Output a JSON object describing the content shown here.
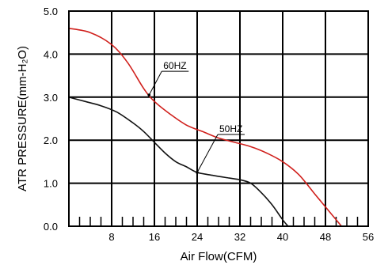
{
  "chart_data": {
    "type": "line",
    "xlabel": "Air Flow(CFM)",
    "ylabel": "ATR PRESSURE(mm-H₂O)",
    "xlim": [
      0,
      56
    ],
    "ylim": [
      0,
      5.0
    ],
    "x_ticks": [
      "8",
      "16",
      "24",
      "32",
      "40",
      "48",
      "56"
    ],
    "y_ticks": [
      "0.0",
      "1.0",
      "2.0",
      "3.0",
      "4.0",
      "5.0"
    ],
    "grid": true,
    "series": [
      {
        "name": "60HZ",
        "color": "#d0201c",
        "x": [
          0,
          4,
          8,
          11,
          14,
          16,
          19,
          22,
          25,
          28,
          31,
          34,
          37,
          40,
          43,
          46,
          49,
          51
        ],
        "y": [
          4.6,
          4.5,
          4.22,
          3.8,
          3.2,
          2.9,
          2.6,
          2.35,
          2.2,
          2.05,
          1.95,
          1.85,
          1.7,
          1.5,
          1.2,
          0.75,
          0.3,
          0.0
        ]
      },
      {
        "name": "50HZ",
        "color": "#111111",
        "x": [
          0,
          3,
          6,
          9,
          12,
          14,
          16,
          18,
          20,
          22,
          24,
          27,
          30,
          32,
          34,
          36,
          38,
          40,
          41
        ],
        "y": [
          3.0,
          2.9,
          2.8,
          2.65,
          2.4,
          2.2,
          1.95,
          1.7,
          1.5,
          1.38,
          1.25,
          1.18,
          1.12,
          1.08,
          1.0,
          0.78,
          0.5,
          0.15,
          0.0
        ]
      }
    ],
    "annotations": [
      {
        "text": "60HZ",
        "series": "60HZ",
        "at_x": 15
      },
      {
        "text": "50HZ",
        "series": "50HZ",
        "at_x": 24
      }
    ]
  }
}
